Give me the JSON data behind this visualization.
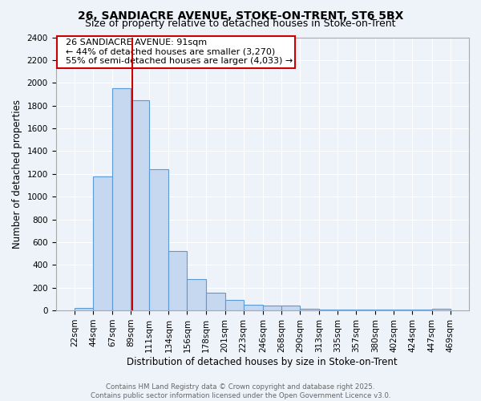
{
  "title1": "26, SANDIACRE AVENUE, STOKE-ON-TRENT, ST6 5BX",
  "title2": "Size of property relative to detached houses in Stoke-on-Trent",
  "xlabel": "Distribution of detached houses by size in Stoke-on-Trent",
  "ylabel": "Number of detached properties",
  "footer1": "Contains HM Land Registry data © Crown copyright and database right 2025.",
  "footer2": "Contains public sector information licensed under the Open Government Licence v3.0.",
  "annotation_line1": "26 SANDIACRE AVENUE: 91sqm",
  "annotation_line2": "← 44% of detached houses are smaller (3,270)",
  "annotation_line3": "55% of semi-detached houses are larger (4,033) →",
  "property_size": 91,
  "bin_edges": [
    22,
    44,
    67,
    89,
    111,
    134,
    156,
    178,
    201,
    223,
    246,
    268,
    290,
    313,
    335,
    357,
    380,
    402,
    424,
    447,
    469
  ],
  "bar_heights": [
    25,
    1175,
    1950,
    1850,
    1240,
    520,
    275,
    155,
    90,
    50,
    40,
    40,
    15,
    5,
    5,
    5,
    5,
    5,
    5,
    15
  ],
  "bar_color": "#c5d8f0",
  "bar_edge_color": "#5b9bd5",
  "red_line_x": 91,
  "ylim": [
    0,
    2400
  ],
  "yticks": [
    0,
    200,
    400,
    600,
    800,
    1000,
    1200,
    1400,
    1600,
    1800,
    2000,
    2200,
    2400
  ],
  "background_color": "#eef2f9",
  "plot_bg_color": "#eef2f9",
  "grid_color": "#ffffff",
  "title_fontsize": 10,
  "subtitle_fontsize": 9,
  "axis_label_fontsize": 8.5,
  "tick_fontsize": 7.5,
  "annotation_fontsize": 8
}
